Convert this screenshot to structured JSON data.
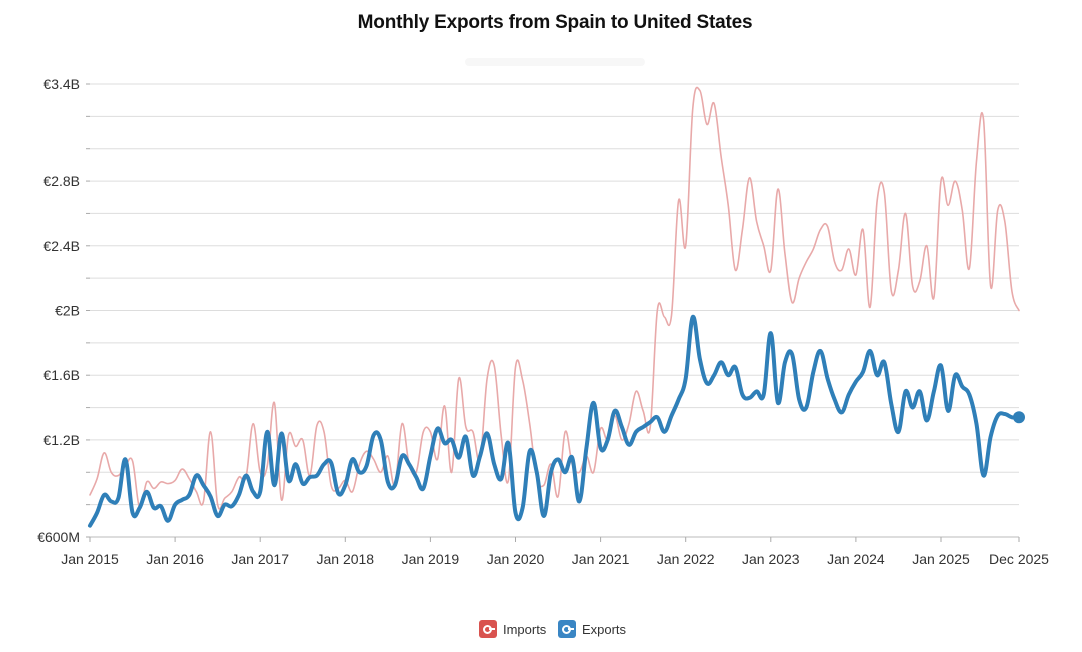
{
  "chart_data": {
    "type": "line",
    "title": "Monthly Exports from Spain to United States",
    "xlabel": "",
    "ylabel": "",
    "ylim": [
      600000000,
      3400000000
    ],
    "y_ticks": [
      {
        "value": 600000000,
        "label": "€600M"
      },
      {
        "value": 1200000000,
        "label": "€1.2B"
      },
      {
        "value": 1600000000,
        "label": "€1.6B"
      },
      {
        "value": 2000000000,
        "label": "€2B"
      },
      {
        "value": 2400000000,
        "label": "€2.4B"
      },
      {
        "value": 2800000000,
        "label": "€2.8B"
      },
      {
        "value": 3400000000,
        "label": "€3.4B"
      }
    ],
    "x_ticks": [
      {
        "month_index": 0,
        "label": "Jan 2015"
      },
      {
        "month_index": 12,
        "label": "Jan 2016"
      },
      {
        "month_index": 24,
        "label": "Jan 2017"
      },
      {
        "month_index": 36,
        "label": "Jan 2018"
      },
      {
        "month_index": 48,
        "label": "Jan 2019"
      },
      {
        "month_index": 60,
        "label": "Jan 2020"
      },
      {
        "month_index": 72,
        "label": "Jan 2021"
      },
      {
        "month_index": 84,
        "label": "Jan 2022"
      },
      {
        "month_index": 96,
        "label": "Jan 2023"
      },
      {
        "month_index": 108,
        "label": "Jan 2024"
      },
      {
        "month_index": 120,
        "label": "Jan 2025"
      },
      {
        "month_index": 131,
        "label": "Dec 2025"
      }
    ],
    "x_start": "Jan 2015",
    "x_end": "Dec 2025",
    "series": [
      {
        "name": "Imports",
        "color": "#e8a9a9",
        "values": [
          0.86,
          0.96,
          1.12,
          1.0,
          0.98,
          1.04,
          1.07,
          0.78,
          0.94,
          0.9,
          0.94,
          0.93,
          0.95,
          1.02,
          0.96,
          0.88,
          0.82,
          1.25,
          0.8,
          0.84,
          0.88,
          0.97,
          0.97,
          1.3,
          1.0,
          1.04,
          1.43,
          0.83,
          1.23,
          1.16,
          1.2,
          0.98,
          1.29,
          1.25,
          0.92,
          0.9,
          0.95,
          0.88,
          1.05,
          1.13,
          1.08,
          1.0,
          1.1,
          0.92,
          1.3,
          1.05,
          1.0,
          1.25,
          1.25,
          1.08,
          1.41,
          1.0,
          1.58,
          1.28,
          1.25,
          1.08,
          1.58,
          1.66,
          1.22,
          0.95,
          1.65,
          1.57,
          1.3,
          0.97,
          0.92,
          1.05,
          0.85,
          1.25,
          1.05,
          1.0,
          1.1,
          1.0,
          1.27,
          1.2,
          1.35,
          1.2,
          1.3,
          1.5,
          1.38,
          1.28,
          2.0,
          1.96,
          1.97,
          2.68,
          2.4,
          3.25,
          3.36,
          3.15,
          3.28,
          2.95,
          2.65,
          2.25,
          2.5,
          2.82,
          2.55,
          2.4,
          2.25,
          2.75,
          2.35,
          2.05,
          2.2,
          2.3,
          2.38,
          2.5,
          2.52,
          2.3,
          2.25,
          2.38,
          2.22,
          2.5,
          2.02,
          2.68,
          2.73,
          2.12,
          2.25,
          2.6,
          2.15,
          2.18,
          2.4,
          2.08,
          2.8,
          2.65,
          2.8,
          2.62,
          2.26,
          2.92,
          3.18,
          2.15,
          2.62,
          2.55,
          2.12,
          2.0
        ]
      },
      {
        "name": "Exports",
        "color": "#2f7fb8",
        "values": [
          0.67,
          0.75,
          0.86,
          0.82,
          0.84,
          1.08,
          0.75,
          0.78,
          0.88,
          0.78,
          0.79,
          0.7,
          0.8,
          0.83,
          0.86,
          0.98,
          0.92,
          0.85,
          0.73,
          0.8,
          0.79,
          0.86,
          0.98,
          0.88,
          0.88,
          1.25,
          0.92,
          1.24,
          0.95,
          1.05,
          0.93,
          0.97,
          0.98,
          1.05,
          1.06,
          0.87,
          0.92,
          1.08,
          1.0,
          1.04,
          1.23,
          1.2,
          0.94,
          0.92,
          1.1,
          1.05,
          0.97,
          0.9,
          1.1,
          1.27,
          1.18,
          1.2,
          1.09,
          1.22,
          0.98,
          1.1,
          1.24,
          1.05,
          0.96,
          1.18,
          0.75,
          0.78,
          1.13,
          1.0,
          0.73,
          1.0,
          1.08,
          1.0,
          1.09,
          0.82,
          1.15,
          1.43,
          1.15,
          1.2,
          1.38,
          1.28,
          1.17,
          1.25,
          1.28,
          1.31,
          1.34,
          1.25,
          1.35,
          1.45,
          1.58,
          1.96,
          1.7,
          1.55,
          1.6,
          1.68,
          1.6,
          1.65,
          1.48,
          1.46,
          1.5,
          1.48,
          1.86,
          1.43,
          1.68,
          1.73,
          1.45,
          1.4,
          1.62,
          1.75,
          1.58,
          1.45,
          1.37,
          1.48,
          1.56,
          1.62,
          1.75,
          1.6,
          1.68,
          1.42,
          1.25,
          1.5,
          1.4,
          1.5,
          1.32,
          1.5,
          1.66,
          1.38,
          1.6,
          1.53,
          1.48,
          1.3,
          0.98,
          1.22,
          1.35,
          1.36,
          1.34,
          1.34
        ]
      }
    ],
    "value_unit": "billion EUR",
    "legend_position": "bottom-center"
  },
  "legend": {
    "imports_label": "Imports",
    "exports_label": "Exports"
  },
  "colors": {
    "imports": "#e8a9a9",
    "imports_swatch": "#d9534f",
    "exports": "#2f7fb8",
    "exports_swatch": "#3a86c4",
    "grid": "#dddddd"
  }
}
